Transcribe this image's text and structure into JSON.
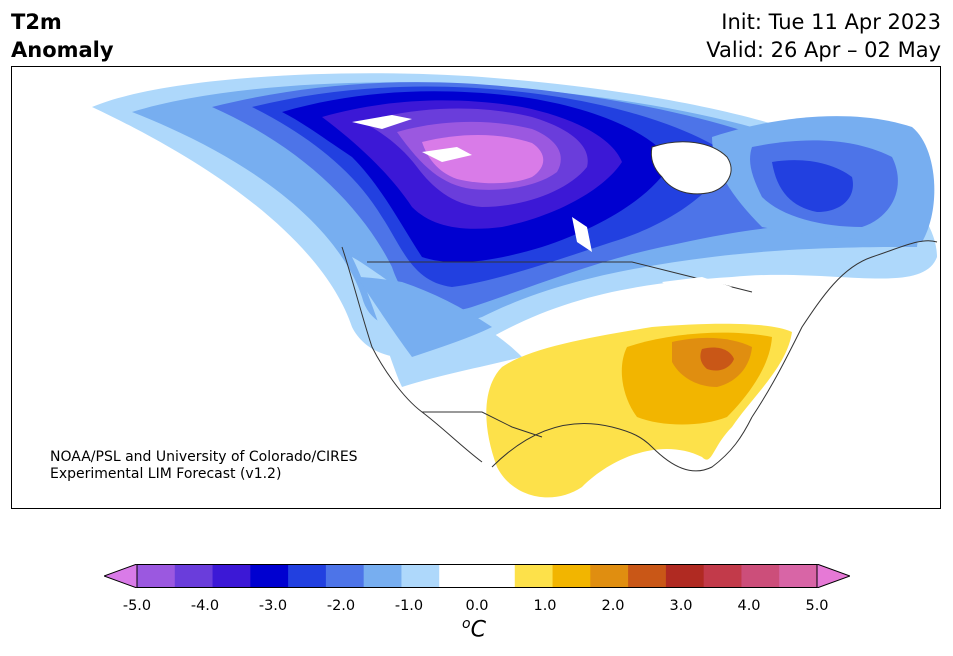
{
  "header": {
    "title_line1": "T2m",
    "title_line2": "Anomaly",
    "init": "Init: Tue 11 Apr 2023",
    "valid": "Valid: 26 Apr – 02 May"
  },
  "credit": {
    "line1": "NOAA/PSL and University of Colorado/CIRES",
    "line2": "Experimental LIM Forecast (v1.2)"
  },
  "colorbar": {
    "unit_base": "C",
    "unit_sup": "o",
    "ticks": [
      "-5.0",
      "-4.0",
      "-3.0",
      "-2.0",
      "-1.0",
      "0.0",
      "1.0",
      "2.0",
      "3.0",
      "4.0",
      "5.0"
    ],
    "colors": [
      "#d97be8",
      "#9b58e0",
      "#6a3ddb",
      "#3c18d6",
      "#0000d0",
      "#2240e0",
      "#4d74e8",
      "#77aef0",
      "#aed8fb",
      "#ffffff",
      "#ffffff",
      "#fde14a",
      "#f2b500",
      "#e08e10",
      "#c95717",
      "#b02a22",
      "#c23a4a",
      "#cc4e7a",
      "#d865a6",
      "#e679d6"
    ]
  },
  "map_info": {
    "region": "North America",
    "variable": "2m temperature anomaly",
    "cold_core": "central Canada",
    "warm_core": "Ohio Valley / Southeast US"
  }
}
